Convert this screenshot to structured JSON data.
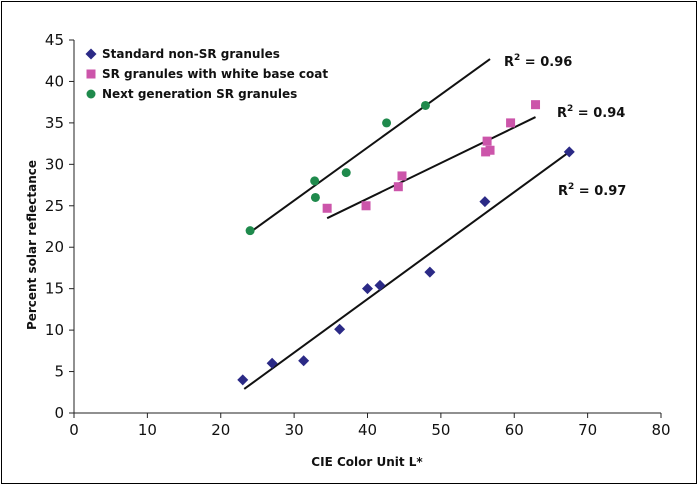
{
  "chart_data": {
    "type": "scatter",
    "title": "",
    "xlabel": "CIE Color Unit L*",
    "ylabel": "Percent solar reflectance",
    "xlim": [
      0,
      80
    ],
    "ylim": [
      0,
      45
    ],
    "x_ticks": [
      0,
      10,
      20,
      30,
      40,
      50,
      60,
      70,
      80
    ],
    "y_ticks": [
      0,
      5,
      10,
      15,
      20,
      25,
      30,
      35,
      40,
      45
    ],
    "grid": false,
    "legend_position": "top-left",
    "series": [
      {
        "name": "Standard non-SR granules",
        "marker": "diamond",
        "color": "#2b2a86",
        "points": [
          [
            23,
            4
          ],
          [
            27,
            6
          ],
          [
            31.3,
            6.3
          ],
          [
            36.2,
            10.1
          ],
          [
            40,
            15
          ],
          [
            41.7,
            15.4
          ],
          [
            48.5,
            17
          ],
          [
            56,
            25.5
          ],
          [
            67.5,
            31.5
          ]
        ],
        "trendline": {
          "x": [
            23.2,
            67.5
          ],
          "y": [
            2.9,
            31.5
          ],
          "r2_label": "R² = 0.97"
        }
      },
      {
        "name": "SR granules with white base coat",
        "marker": "square",
        "color": "#cc55aa",
        "points": [
          [
            34.5,
            24.7
          ],
          [
            39.8,
            25
          ],
          [
            44.2,
            27.3
          ],
          [
            44.7,
            28.6
          ],
          [
            56.1,
            31.5
          ],
          [
            56.3,
            32.8
          ],
          [
            56.7,
            31.7
          ],
          [
            59.5,
            35
          ],
          [
            62.9,
            37.2
          ]
        ],
        "trendline": {
          "x": [
            34.5,
            62.9
          ],
          "y": [
            23.5,
            35.7
          ],
          "r2_label": "R² = 0.94"
        }
      },
      {
        "name": "Next generation SR granules",
        "marker": "circle",
        "color": "#1f8a4c",
        "points": [
          [
            24,
            22
          ],
          [
            32.8,
            28
          ],
          [
            32.9,
            26
          ],
          [
            37.1,
            29
          ],
          [
            42.6,
            35
          ],
          [
            47.9,
            37.1
          ]
        ],
        "trendline": {
          "x": [
            24,
            56.7
          ],
          "y": [
            21.8,
            42.7
          ],
          "r2_label": "R² = 0.96"
        }
      }
    ]
  }
}
